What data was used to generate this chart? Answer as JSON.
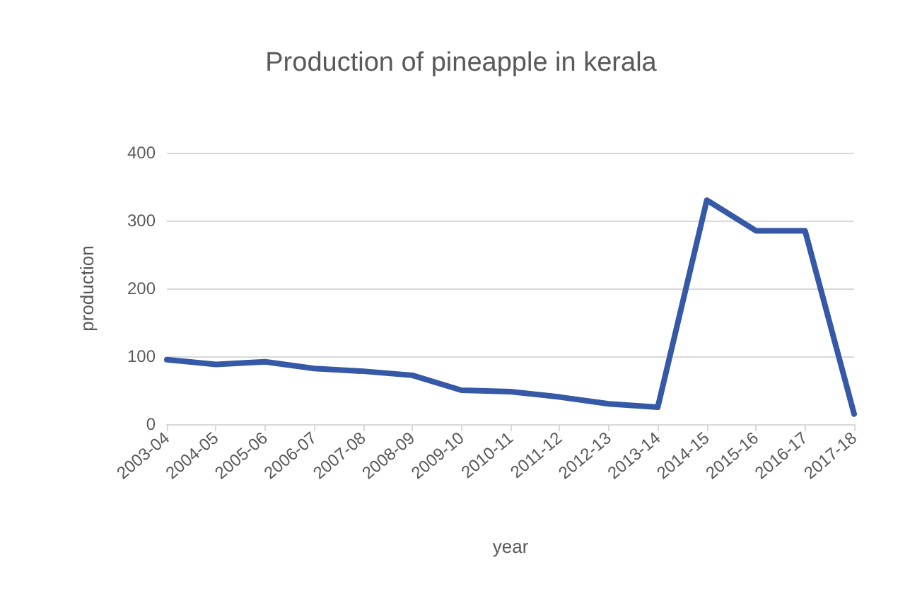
{
  "chart_data": {
    "type": "line",
    "title": "Production of pineapple in kerala",
    "xlabel": "year",
    "ylabel": "production",
    "categories": [
      "2003-04",
      "2004-05",
      "2005-06",
      "2006-07",
      "2007-08",
      "2008-09",
      "2009-10",
      "2010-11",
      "2011-12",
      "2012-13",
      "2013-14",
      "2014-15",
      "2015-16",
      "2016-17",
      "2017-18"
    ],
    "series": [
      {
        "color": "#3559a6",
        "values": [
          95,
          88,
          92,
          82,
          78,
          72,
          50,
          48,
          40,
          30,
          25,
          330,
          285,
          285,
          15
        ]
      }
    ],
    "ylim": [
      0,
      400
    ],
    "yticks": [
      0,
      100,
      200,
      300,
      400
    ],
    "grid": "y",
    "marker": "none",
    "line_style": "solid"
  }
}
